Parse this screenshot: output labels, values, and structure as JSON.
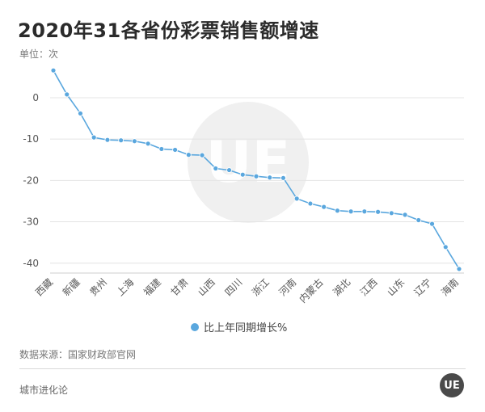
{
  "title": "2020年31各省份彩票销售额增速",
  "unit_label": "单位：次",
  "source": "数据来源：国家财政部官网",
  "footer": "城市进化论",
  "logo_text": "UE",
  "watermark_text": "UE",
  "colors": {
    "line": "#5aa7de",
    "grid": "#e4e4e4",
    "axis_text": "#555555"
  },
  "chart_data": {
    "type": "line",
    "categories": [
      "西藏",
      "新疆",
      "贵州",
      "上海",
      "福建",
      "甘肃",
      "山西",
      "四川",
      "浙江",
      "河南",
      "内蒙古",
      "湖北",
      "江西",
      "山东",
      "辽宁",
      "海南"
    ],
    "x": [
      "西藏",
      "",
      "新疆",
      "",
      "贵州",
      "",
      "上海",
      "",
      "福建",
      "",
      "甘肃",
      "",
      "山西",
      "",
      "四川",
      "",
      "浙江",
      "",
      "河南",
      "",
      "内蒙古",
      "",
      "湖北",
      "",
      "江西",
      "",
      "山东",
      "",
      "辽宁",
      "",
      "海南"
    ],
    "series": [
      {
        "name": "比上年同期增长%",
        "values": [
          6.6,
          0.8,
          -3.8,
          -9.6,
          -10.2,
          -10.3,
          -10.5,
          -11.1,
          -12.4,
          -12.6,
          -13.8,
          -13.9,
          -17.1,
          -17.5,
          -18.6,
          -19.0,
          -19.3,
          -19.4,
          -24.4,
          -25.6,
          -26.4,
          -27.3,
          -27.5,
          -27.5,
          -27.6,
          -27.9,
          -28.3,
          -29.6,
          -30.5,
          -36.1,
          -41.4
        ]
      }
    ],
    "yticks": [
      0,
      -10,
      -20,
      -30,
      -40
    ],
    "ylim": [
      -42,
      8
    ],
    "grid": true,
    "legend_position": "bottom"
  }
}
